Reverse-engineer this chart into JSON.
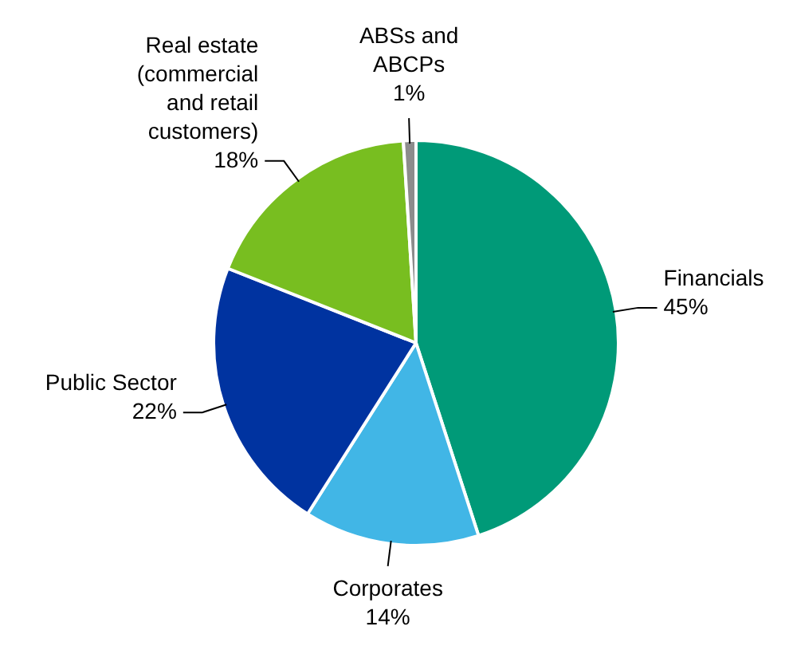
{
  "chart_data": {
    "type": "pie",
    "categories": [
      "Financials",
      "Corporates",
      "Public Sector",
      "Real estate (commercial and retail customers)",
      "ABSs and ABCPs"
    ],
    "values": [
      45,
      14,
      22,
      18,
      1
    ],
    "value_labels": [
      "45%",
      "14%",
      "22%",
      "18%",
      "1%"
    ],
    "colors": [
      "#009a78",
      "#41b6e6",
      "#0033a0",
      "#78be20",
      "#8c8c8c"
    ]
  }
}
